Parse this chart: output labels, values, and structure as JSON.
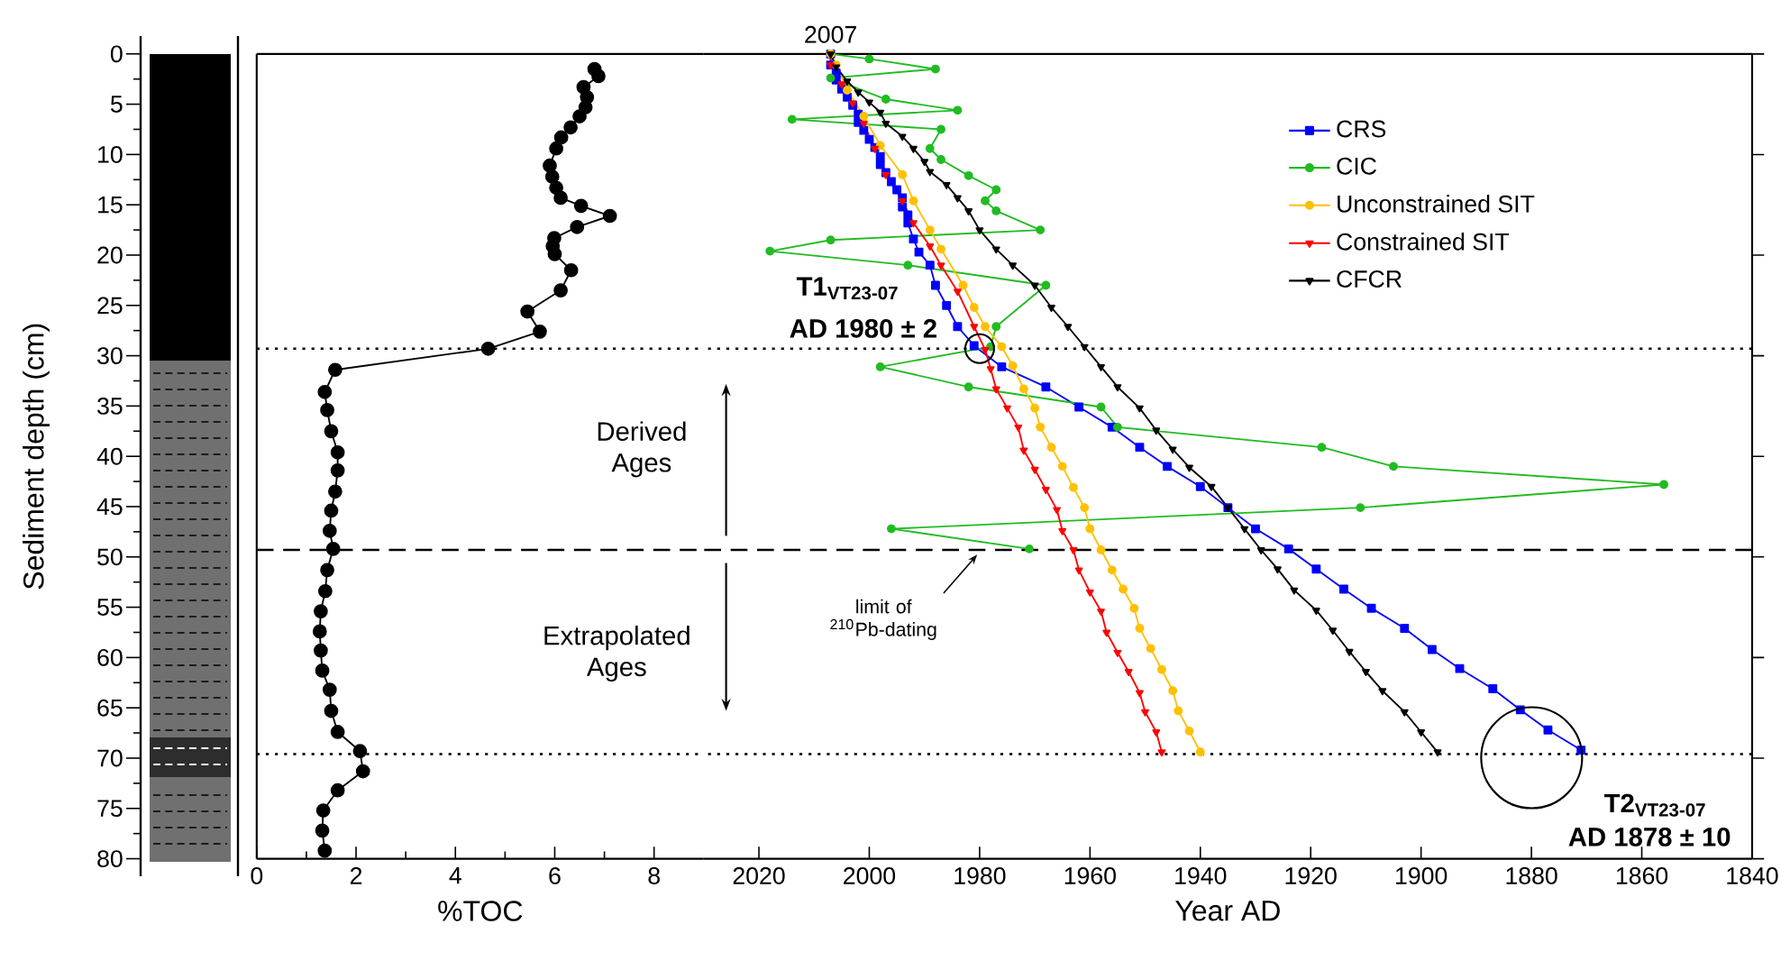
{
  "chart_data": [
    {
      "type": "line",
      "xlabel": "%TOC",
      "ylabel": "Sediment depth (cm)",
      "color": "#000000",
      "marker": "circle",
      "xlim": [
        0,
        9
      ],
      "ylim": [
        80,
        0
      ],
      "xticks": [
        0,
        2,
        4,
        6,
        8
      ],
      "yticks": [
        0,
        5,
        10,
        15,
        20,
        25,
        30,
        35,
        40,
        45,
        50,
        55,
        60,
        65,
        70,
        75,
        80
      ],
      "x": [
        6.8,
        6.88,
        6.58,
        6.65,
        6.62,
        6.5,
        6.32,
        6.13,
        6.03,
        5.9,
        5.95,
        6.03,
        6.12,
        6.53,
        7.11,
        6.45,
        5.99,
        5.96,
        6.0,
        6.33,
        6.12,
        5.45,
        5.7,
        4.66,
        1.58,
        1.37,
        1.42,
        1.5,
        1.63,
        1.63,
        1.58,
        1.5,
        1.47,
        1.54,
        1.42,
        1.38,
        1.29,
        1.27,
        1.29,
        1.32,
        1.47,
        1.5,
        1.63,
        2.08,
        2.14,
        1.63,
        1.34,
        1.32,
        1.37
      ],
      "values": [
        1.5,
        2.2,
        3.3,
        4.3,
        5.3,
        6.2,
        7.3,
        8.3,
        9.4,
        11.1,
        12.2,
        13.3,
        14.3,
        15.1,
        16.1,
        17.2,
        18.3,
        19.1,
        19.9,
        21.5,
        23.5,
        25.6,
        27.6,
        29.3,
        31.4,
        33.6,
        35.4,
        37.5,
        39.6,
        41.4,
        43.5,
        45.4,
        47.4,
        49.2,
        51.3,
        53.4,
        55.4,
        57.4,
        59.3,
        61.3,
        63.2,
        65.3,
        67.4,
        69.3,
        71.3,
        73.2,
        75.2,
        77.2,
        79.2
      ],
      "ref_lines": [
        {
          "axis": "y",
          "value": 29.3,
          "line_style": "dotted"
        },
        {
          "axis": "y",
          "value": 49.3,
          "line_style": "dashed"
        },
        {
          "axis": "y",
          "value": 69.6,
          "line_style": "dotted"
        }
      ],
      "annotations": [
        "Derived Ages",
        "Extrapolated Ages"
      ]
    },
    {
      "type": "line",
      "xlabel": "Year AD",
      "xlim": [
        2030,
        1840
      ],
      "ylim": [
        80,
        0
      ],
      "xticks": [
        2020,
        2000,
        1980,
        1960,
        1940,
        1920,
        1900,
        1880,
        1860,
        1840
      ],
      "yticks": [
        {
          "value": 0,
          "label": null
        },
        {
          "value": 10,
          "label": null
        },
        {
          "value": 20,
          "label": null
        },
        {
          "value": 30,
          "label": null
        },
        {
          "value": 40,
          "label": null
        },
        {
          "value": 50,
          "label": null
        },
        {
          "value": 60,
          "label": null
        },
        {
          "value": 70,
          "label": null
        },
        {
          "value": 80,
          "label": null
        }
      ],
      "tick_labels": "x",
      "legend": "top right",
      "series": [
        {
          "name": "CRS",
          "color": "#0000ff",
          "marker": "square",
          "x": [
            2007,
            2007,
            2006,
            2006,
            2005,
            2004,
            2003,
            2002,
            2002,
            2001,
            2000,
            1999,
            1998,
            1998,
            1997,
            1996,
            1995,
            1994,
            1994,
            1993,
            1993,
            1992,
            1991,
            1989,
            1988,
            1986,
            1984,
            1981,
            1976,
            1968,
            1962,
            1956,
            1951,
            1946,
            1940,
            1935,
            1930,
            1924,
            1919,
            1914,
            1909,
            1903,
            1898,
            1893,
            1887,
            1882,
            1877,
            1871
          ],
          "values": [
            0,
            1.1,
            1.9,
            2.6,
            3.5,
            4.3,
            5.1,
            6.0,
            6.8,
            7.6,
            8.5,
            9.3,
            10.2,
            11.0,
            11.8,
            12.7,
            13.5,
            14.3,
            15.2,
            16.0,
            16.8,
            18.4,
            19.7,
            21.0,
            23.0,
            25.0,
            27.1,
            29.0,
            31.1,
            33.1,
            35.1,
            37.1,
            39.1,
            41.0,
            43.0,
            45.1,
            47.2,
            49.2,
            51.2,
            53.2,
            55.1,
            57.1,
            59.2,
            61.1,
            63.1,
            65.2,
            67.2,
            69.2
          ]
        },
        {
          "name": "CIC",
          "color": "#22bb22",
          "marker": "circle",
          "x": [
            2007,
            2000,
            1988,
            2007,
            1997,
            1984,
            2014,
            1987,
            1989,
            1987,
            1982,
            1977,
            1979,
            1977,
            1969,
            2007,
            2018,
            1993,
            1968,
            1977,
            1978,
            1998,
            1982,
            1958,
            1955,
            1918,
            1905,
            1856,
            1911,
            1996,
            1971
          ],
          "values": [
            0,
            0.5,
            1.5,
            2.4,
            4.5,
            5.6,
            6.5,
            7.5,
            9.4,
            10.5,
            12.1,
            13.5,
            14.6,
            15.6,
            17.5,
            18.5,
            19.6,
            21.0,
            23.0,
            27.1,
            29.1,
            31.1,
            33.1,
            35.1,
            37.1,
            39.1,
            41.0,
            42.8,
            45.1,
            47.2,
            49.2
          ]
        },
        {
          "name": "Unconstrained SIT",
          "color": "#ffc000",
          "marker": "circle",
          "x": [
            2007,
            2006,
            2004,
            2001,
            1998,
            1994,
            1992,
            1989,
            1987,
            1983,
            1981,
            1979,
            1976,
            1974,
            1972,
            1970,
            1969,
            1967,
            1965,
            1963,
            1961,
            1960,
            1958,
            1956,
            1954,
            1952,
            1951,
            1949,
            1947,
            1945,
            1944,
            1942,
            1940
          ],
          "values": [
            0,
            1.1,
            3.6,
            6.2,
            9.1,
            12.0,
            14.6,
            17.5,
            19.4,
            23.0,
            25.2,
            27.1,
            29.1,
            31.0,
            33.3,
            35.2,
            37.1,
            39.1,
            41.0,
            43.1,
            45.1,
            47.2,
            49.3,
            51.3,
            53.2,
            55.1,
            57.1,
            59.1,
            61.2,
            63.3,
            65.3,
            67.3,
            69.4
          ]
        },
        {
          "name": "Constrained SIT",
          "color": "#ff0000",
          "marker": "triangle",
          "x": [
            2007,
            2007,
            2005,
            2003,
            2001,
            1999,
            1997,
            1994,
            1992,
            1989,
            1987,
            1984,
            1981,
            1979,
            1978,
            1977,
            1975,
            1973,
            1972,
            1970,
            1968,
            1966,
            1965,
            1963,
            1962,
            1960,
            1958,
            1957,
            1955,
            1953,
            1951,
            1950,
            1948,
            1947
          ],
          "values": [
            0,
            1.1,
            3.0,
            4.9,
            6.9,
            9.4,
            12.0,
            14.6,
            16.8,
            19.1,
            21.0,
            23.6,
            27.1,
            29.4,
            31.3,
            33.3,
            35.2,
            37.1,
            39.4,
            41.3,
            43.3,
            45.3,
            47.4,
            49.3,
            51.3,
            53.5,
            55.4,
            57.5,
            59.5,
            61.4,
            63.5,
            65.4,
            67.4,
            69.4
          ]
        },
        {
          "name": "CFCR",
          "color": "#000000",
          "marker": "triangle",
          "x": [
            2007,
            2006,
            2004,
            2002,
            2000,
            1998,
            1997,
            1994,
            1992,
            1990,
            1989,
            1986,
            1984,
            1982,
            1980,
            1977,
            1974,
            1970,
            1967,
            1964,
            1961,
            1958,
            1955,
            1951,
            1948,
            1945,
            1942,
            1938,
            1935,
            1932,
            1929,
            1926,
            1923,
            1919,
            1916,
            1913,
            1910,
            1907,
            1903,
            1900,
            1897
          ],
          "values": [
            0,
            1.3,
            2.7,
            3.8,
            4.8,
            5.8,
            6.9,
            8.2,
            9.4,
            10.7,
            11.7,
            13.0,
            14.3,
            15.6,
            17.5,
            19.4,
            21.0,
            23.0,
            25.2,
            27.1,
            29.1,
            31.1,
            33.1,
            35.2,
            37.4,
            39.3,
            41.1,
            43.0,
            45.1,
            47.2,
            49.3,
            51.2,
            53.3,
            55.3,
            57.3,
            59.4,
            61.4,
            63.3,
            65.4,
            67.4,
            69.4
          ]
        }
      ],
      "ref_lines": [
        {
          "axis": "y",
          "value": 29.3,
          "line_style": "dotted"
        },
        {
          "axis": "y",
          "value": 49.3,
          "line_style": "dashed"
        },
        {
          "axis": "y",
          "value": 69.6,
          "line_style": "dotted"
        }
      ],
      "annotations": [
        {
          "text": "2007",
          "x": 2007,
          "y": 0
        },
        "T1$_{VT23-07}$",
        {
          "text": "AD 1980 ± 2",
          "x": 1980,
          "y": 29.3
        },
        {
          "text": "limit of $^{210}$Pb-dating",
          "x": 1980,
          "y": 49.3
        },
        {
          "text": "T2$_{VT23-07}$",
          "x": 1878,
          "y": 69.6
        },
        {
          "text": "AD 1878 ± 10",
          "x": 1878,
          "y": 69.6
        }
      ]
    }
  ]
}
